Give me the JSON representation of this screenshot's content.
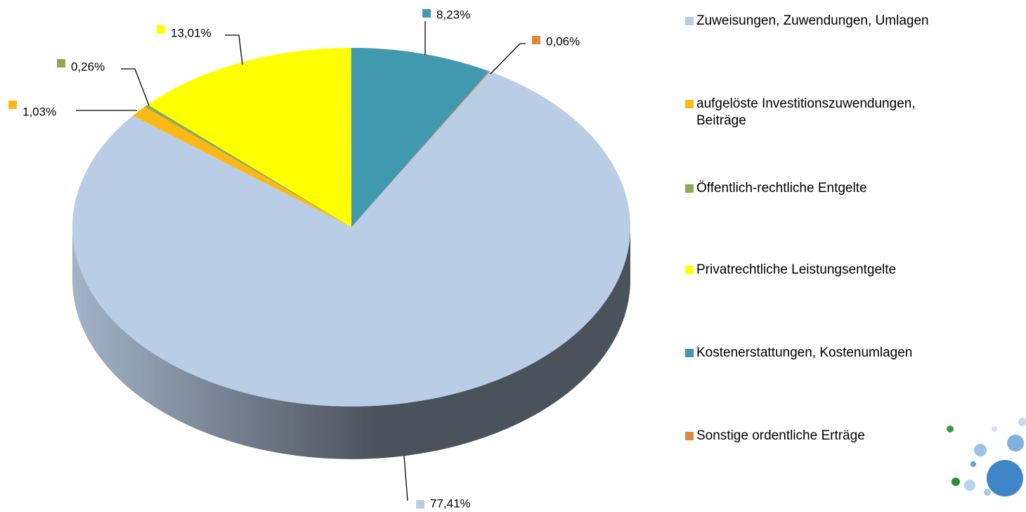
{
  "chart_data": {
    "type": "pie",
    "categories": [
      "Zuweisungen, Zuwendungen, Umlagen",
      "aufgelöste Investitionszuwendungen, Beiträge",
      "Öffentlich-rechtliche Entgelte",
      "Privatrechtliche Leistungsentgelte",
      "Kostenerstattungen, Kostenumlagen",
      "Sonstige ordentliche Erträge"
    ],
    "values": [
      77.41,
      1.03,
      0.26,
      13.01,
      8.23,
      0.06
    ],
    "value_labels": [
      "77,41%",
      "1,03%",
      "0,26%",
      "13,01%",
      "8,23%",
      "0,06%"
    ],
    "colors": [
      "#b9cde6",
      "#fdb913",
      "#8faa55",
      "#ffff00",
      "#4199b0",
      "#e0883c"
    ],
    "legend": "right"
  }
}
